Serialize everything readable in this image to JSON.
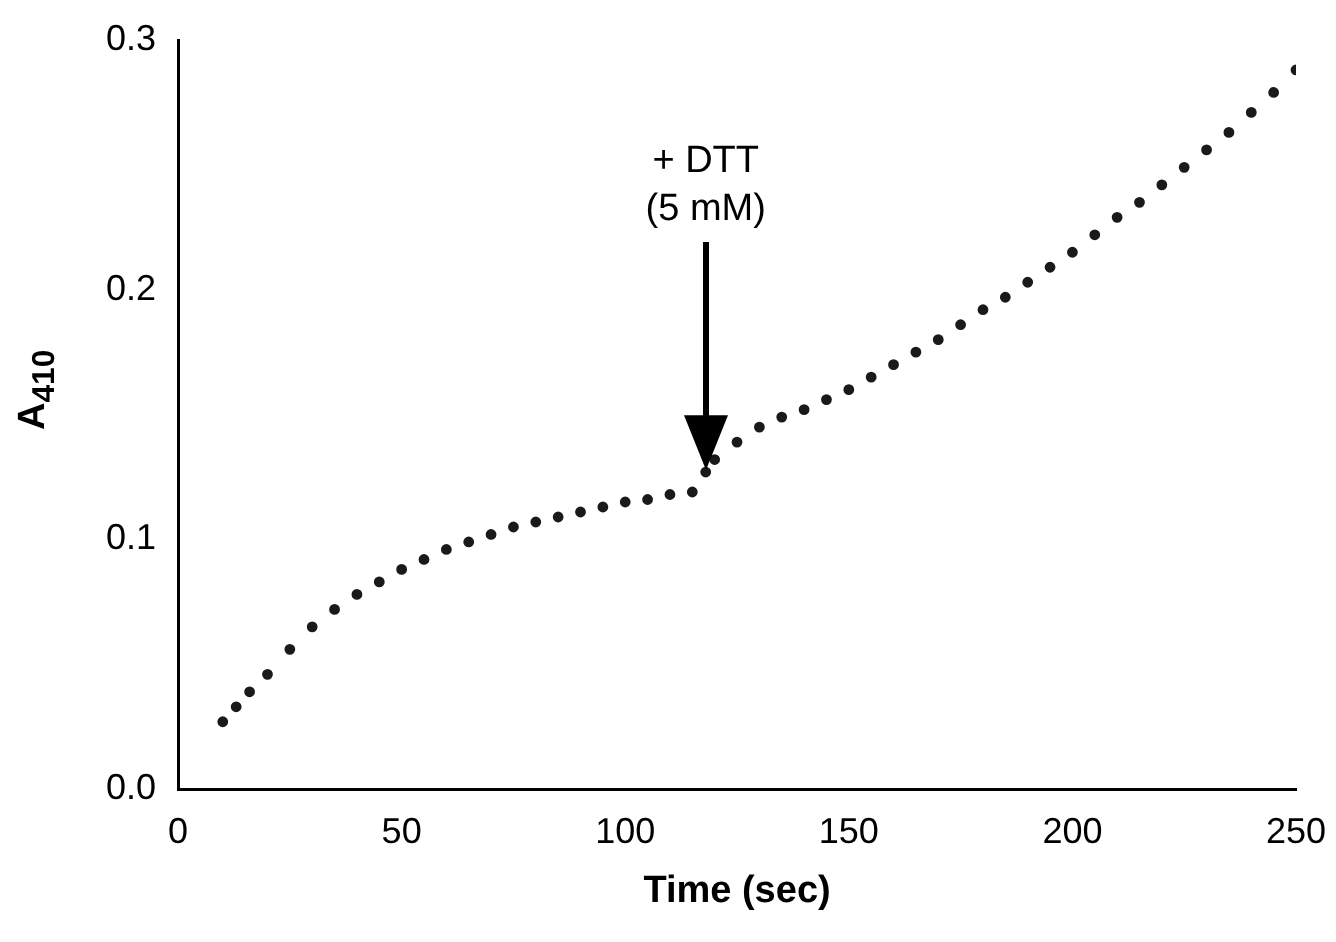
{
  "chart_data": {
    "type": "scatter",
    "xlabel": "Time (sec)",
    "ylabel": "A$_{410}$",
    "x": [
      10,
      13,
      16,
      20,
      25,
      30,
      35,
      40,
      45,
      50,
      55,
      60,
      65,
      70,
      75,
      80,
      85,
      90,
      95,
      100,
      105,
      110,
      115,
      118,
      120,
      125,
      130,
      135,
      140,
      145,
      150,
      155,
      160,
      165,
      170,
      175,
      180,
      185,
      190,
      195,
      200,
      205,
      210,
      215,
      220,
      225,
      230,
      235,
      240,
      245,
      250
    ],
    "values": [
      0.027,
      0.033,
      0.039,
      0.046,
      0.056,
      0.065,
      0.072,
      0.078,
      0.083,
      0.088,
      0.092,
      0.096,
      0.099,
      0.102,
      0.105,
      0.107,
      0.109,
      0.111,
      0.113,
      0.115,
      0.116,
      0.118,
      0.119,
      0.127,
      0.132,
      0.139,
      0.145,
      0.149,
      0.152,
      0.156,
      0.16,
      0.165,
      0.17,
      0.175,
      0.18,
      0.186,
      0.192,
      0.197,
      0.203,
      0.209,
      0.215,
      0.222,
      0.229,
      0.235,
      0.242,
      0.249,
      0.256,
      0.263,
      0.271,
      0.279,
      0.288
    ],
    "color": "#1a1a1a",
    "marker": "circle",
    "grid": false,
    "legend": false,
    "xlim": [
      0,
      250
    ],
    "xticks": [
      0,
      50,
      100,
      150,
      200,
      250
    ],
    "ylim": [
      0,
      0.3
    ],
    "yticks": [
      {
        "value": 0,
        "label": "0.0"
      },
      {
        "value": 0.1,
        "label": "0.1"
      },
      {
        "value": 0.2,
        "label": "0.2"
      },
      {
        "value": 0.3,
        "label": "0.3"
      }
    ],
    "annotations": [
      "+ DTT\n(5 mM)"
    ]
  }
}
